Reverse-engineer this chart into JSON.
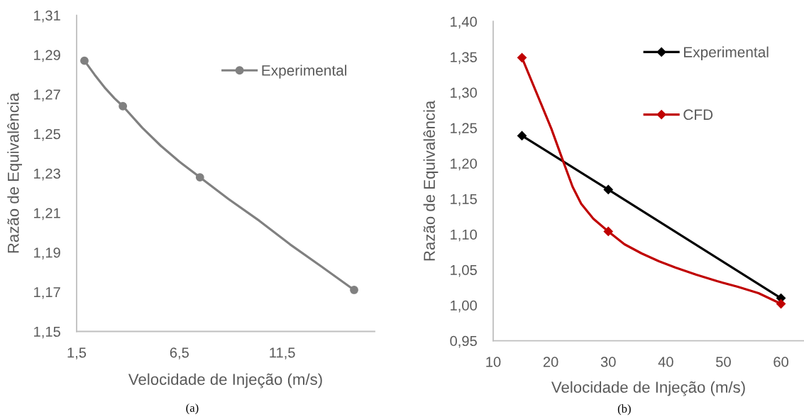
{
  "chart_data": [
    {
      "type": "line",
      "series": [
        {
          "name": "Experimental",
          "color": "#808080",
          "marker": "none",
          "x": [
            1.88,
            2.37,
            2.9,
            3.34,
            3.75,
            4.7,
            5.59,
            6.49,
            7.5,
            8.89,
            10.39,
            11.89,
            13.39,
            15
          ],
          "values": [
            1.287,
            1.28,
            1.273,
            1.268,
            1.264,
            1.253,
            1.244,
            1.236,
            1.228,
            1.217,
            1.206,
            1.194,
            1.183,
            1.171
          ]
        },
        {
          "type": "scatter",
          "color": "#808080",
          "x": [
            1.88,
            3.75,
            7.5,
            15
          ],
          "values": [
            1.287,
            1.264,
            1.228,
            1.171
          ]
        }
      ],
      "xlabel": "Velocidade de Injeção (m/s)",
      "ylabel": "Razão de Equivalência",
      "xlim": [
        1.5,
        16
      ],
      "xticks": [
        {
          "value": 1.5,
          "label": "1,5"
        },
        {
          "value": 6.5,
          "label": "6,5"
        },
        {
          "value": 11.5,
          "label": "11,5"
        }
      ],
      "ylim": [
        1.15,
        1.31
      ],
      "yticks": [
        {
          "value": 1.15,
          "label": "1,15"
        },
        {
          "value": 1.17,
          "label": "1,17"
        },
        {
          "value": 1.19,
          "label": "1,19"
        },
        {
          "value": 1.21,
          "label": "1,21"
        },
        {
          "value": 1.23,
          "label": "1,23"
        },
        {
          "value": 1.25,
          "label": "1,25"
        },
        {
          "value": 1.27,
          "label": "1,27"
        },
        {
          "value": 1.29,
          "label": "1,29"
        },
        {
          "value": 1.31,
          "label": "1,31"
        }
      ],
      "legend": "top right",
      "marker": "circle",
      "annotations": [
        "(a)"
      ]
    },
    {
      "type": "line",
      "series": [
        {
          "name": "Experimental",
          "color": "#000000",
          "x": [
            15,
            30,
            60
          ],
          "values": [
            1.239,
            1.163,
            1.01
          ]
        },
        {
          "name": "CFD",
          "color": "#c00000",
          "marker": "none",
          "x": [
            15,
            17.4,
            20.1,
            22.2,
            23.8,
            25.3,
            27.4,
            30,
            32.8,
            35.8,
            38.8,
            41.7,
            45.3,
            48.9,
            52.5,
            56.1,
            60
          ],
          "values": [
            1.349,
            1.302,
            1.249,
            1.202,
            1.167,
            1.143,
            1.122,
            1.104,
            1.086,
            1.073,
            1.062,
            1.053,
            1.043,
            1.034,
            1.026,
            1.017,
            1.002
          ]
        },
        {
          "type": "scatter",
          "color": "#c00000",
          "x": [
            15,
            30,
            60
          ],
          "values": [
            1.349,
            1.104,
            1.002
          ]
        }
      ],
      "xlabel": "Velocidade de Injeção (m/s)",
      "ylabel": "Razão de Equivalência",
      "xlim": [
        10,
        64
      ],
      "xticks": [
        10,
        20,
        30,
        40,
        50,
        60
      ],
      "ylim": [
        0.95,
        1.4
      ],
      "yticks": [
        {
          "value": 0.95,
          "label": "0,95"
        },
        {
          "value": 1.0,
          "label": "1,00"
        },
        {
          "value": 1.05,
          "label": "1,05"
        },
        {
          "value": 1.1,
          "label": "1,10"
        },
        {
          "value": 1.15,
          "label": "1,15"
        },
        {
          "value": 1.2,
          "label": "1,20"
        },
        {
          "value": 1.25,
          "label": "1,25"
        },
        {
          "value": 1.3,
          "label": "1,30"
        },
        {
          "value": 1.35,
          "label": "1,35"
        },
        {
          "value": 1.4,
          "label": "1,40"
        }
      ],
      "legend": "top right",
      "marker": "diamond",
      "annotations": [
        "(b)"
      ]
    }
  ]
}
